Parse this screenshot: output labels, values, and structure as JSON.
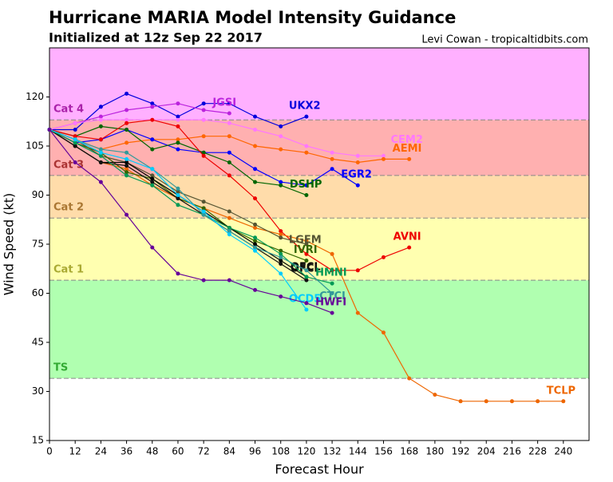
{
  "chart_data": {
    "type": "line",
    "title": "Hurricane MARIA Model Intensity Guidance",
    "subtitle": "Initialized at 12z Sep 22 2017",
    "credit": "Levi Cowan - tropicaltidbits.com",
    "x_label": "Forecast Hour",
    "y_label": "Wind Speed (kt)",
    "xlim": [
      0,
      252
    ],
    "ylim": [
      15,
      135
    ],
    "xticks": [
      0,
      12,
      24,
      36,
      48,
      60,
      72,
      84,
      96,
      108,
      120,
      132,
      144,
      156,
      168,
      180,
      192,
      204,
      216,
      228,
      240
    ],
    "yticks": [
      15,
      30,
      45,
      60,
      75,
      90,
      105,
      120
    ],
    "bands": [
      {
        "label": "TS",
        "from": 34,
        "to": 64,
        "color": "#b0ffb0",
        "label_color": "#33aa33"
      },
      {
        "label": "Cat 1",
        "from": 64,
        "to": 83,
        "color": "#ffffb0",
        "label_color": "#aaaa33"
      },
      {
        "label": "Cat 2",
        "from": 83,
        "to": 96,
        "color": "#ffdcaa",
        "label_color": "#aa7733"
      },
      {
        "label": "Cat 3",
        "from": 96,
        "to": 113,
        "color": "#ffb0b0",
        "label_color": "#aa3333"
      },
      {
        "label": "Cat 4",
        "from": 113,
        "color": "#ffb0ff",
        "label_color": "#aa22aa"
      }
    ],
    "x": [
      0,
      12,
      24,
      36,
      48,
      60,
      72,
      84,
      96,
      108,
      120,
      132,
      144,
      156,
      168,
      180,
      192,
      204,
      216,
      228,
      240
    ],
    "series": [
      {
        "name": "UKX2",
        "color": "#0000dd",
        "values": [
          110,
          110,
          117,
          121,
          118,
          114,
          118,
          118,
          114,
          111,
          114,
          null,
          null,
          null,
          null,
          null,
          null,
          null,
          null,
          null,
          null
        ]
      },
      {
        "name": "JGSI",
        "color": "#bb22dd",
        "values": [
          110,
          112,
          114,
          116,
          117,
          118,
          116,
          115,
          null,
          null,
          null,
          null,
          null,
          null,
          null,
          null,
          null,
          null,
          null,
          null,
          null
        ]
      },
      {
        "name": "CEM2",
        "color": "#ff77ff",
        "values": [
          110,
          112,
          113,
          113,
          113,
          113,
          113,
          112,
          110,
          108,
          105,
          103,
          102,
          102,
          null,
          null,
          null,
          null,
          null,
          null,
          null
        ]
      },
      {
        "name": "AEMI",
        "color": "#ff6600",
        "values": [
          110,
          107,
          104,
          106,
          107,
          107,
          108,
          108,
          105,
          104,
          103,
          101,
          100,
          101,
          101,
          null,
          null,
          null,
          null,
          null,
          null
        ]
      },
      {
        "name": "EGR2",
        "color": "#0000ff",
        "values": [
          110,
          106,
          107,
          110,
          107,
          104,
          103,
          103,
          98,
          94,
          93,
          98,
          93,
          null,
          null,
          null,
          null,
          null,
          null,
          null,
          null
        ]
      },
      {
        "name": "DSHP",
        "color": "#006600",
        "values": [
          110,
          108,
          111,
          110,
          104,
          106,
          103,
          100,
          94,
          93,
          90,
          null,
          null,
          null,
          null,
          null,
          null,
          null,
          null,
          null,
          null
        ]
      },
      {
        "name": "AVNI",
        "color": "#ee0000",
        "values": [
          110,
          108,
          107,
          112,
          113,
          111,
          102,
          96,
          89,
          79,
          72,
          67,
          67,
          71,
          74,
          null,
          null,
          null,
          null,
          null,
          null
        ]
      },
      {
        "name": "TCLP",
        "color": "#ee6600",
        "values": [
          110,
          105,
          100,
          98,
          93,
          89,
          86,
          83,
          80,
          78,
          76,
          72,
          54,
          48,
          34,
          29,
          27,
          27,
          27,
          27,
          27
        ]
      },
      {
        "name": "LGEM",
        "color": "#555533",
        "values": [
          110,
          107,
          102,
          100,
          96,
          91,
          88,
          85,
          81,
          77,
          75,
          null,
          null,
          null,
          null,
          null,
          null,
          null,
          null,
          null,
          null
        ]
      },
      {
        "name": "IVRI",
        "color": "#336600",
        "values": [
          110,
          106,
          103,
          97,
          95,
          89,
          86,
          80,
          76,
          73,
          70,
          null,
          null,
          null,
          null,
          null,
          null,
          null,
          null,
          null,
          null
        ]
      },
      {
        "name": "OFCL",
        "color": "#000000",
        "values": [
          110,
          105,
          100,
          100,
          95,
          90,
          85,
          80,
          75,
          70,
          65,
          null,
          null,
          null,
          null,
          null,
          null,
          null,
          null,
          null,
          null
        ]
      },
      {
        "name": "OFCI",
        "color": "#111111",
        "values": [
          110,
          105,
          100,
          99,
          94,
          89,
          84,
          79,
          74,
          69,
          64,
          null,
          null,
          null,
          null,
          null,
          null,
          null,
          null,
          null,
          null
        ]
      },
      {
        "name": "HMNI",
        "color": "#009955",
        "values": [
          110,
          106,
          102,
          96,
          93,
          87,
          84,
          80,
          77,
          72,
          65,
          63,
          null,
          null,
          null,
          null,
          null,
          null,
          null,
          null,
          null
        ]
      },
      {
        "name": "CTCI",
        "color": "#339999",
        "values": [
          110,
          107,
          104,
          103,
          98,
          92,
          84,
          79,
          74,
          71,
          67,
          60,
          null,
          null,
          null,
          null,
          null,
          null,
          null,
          null,
          null
        ]
      },
      {
        "name": "OCD5",
        "color": "#00ccff",
        "values": [
          110,
          107,
          103,
          101,
          98,
          90,
          85,
          78,
          73,
          66,
          55,
          null,
          null,
          null,
          null,
          null,
          null,
          null,
          null,
          null,
          null
        ]
      },
      {
        "name": "HWFI",
        "color": "#660099",
        "values": [
          110,
          100,
          94,
          84,
          74,
          66,
          64,
          64,
          61,
          59,
          57,
          54,
          null,
          null,
          null,
          null,
          null,
          null,
          null,
          null,
          null
        ]
      }
    ]
  }
}
